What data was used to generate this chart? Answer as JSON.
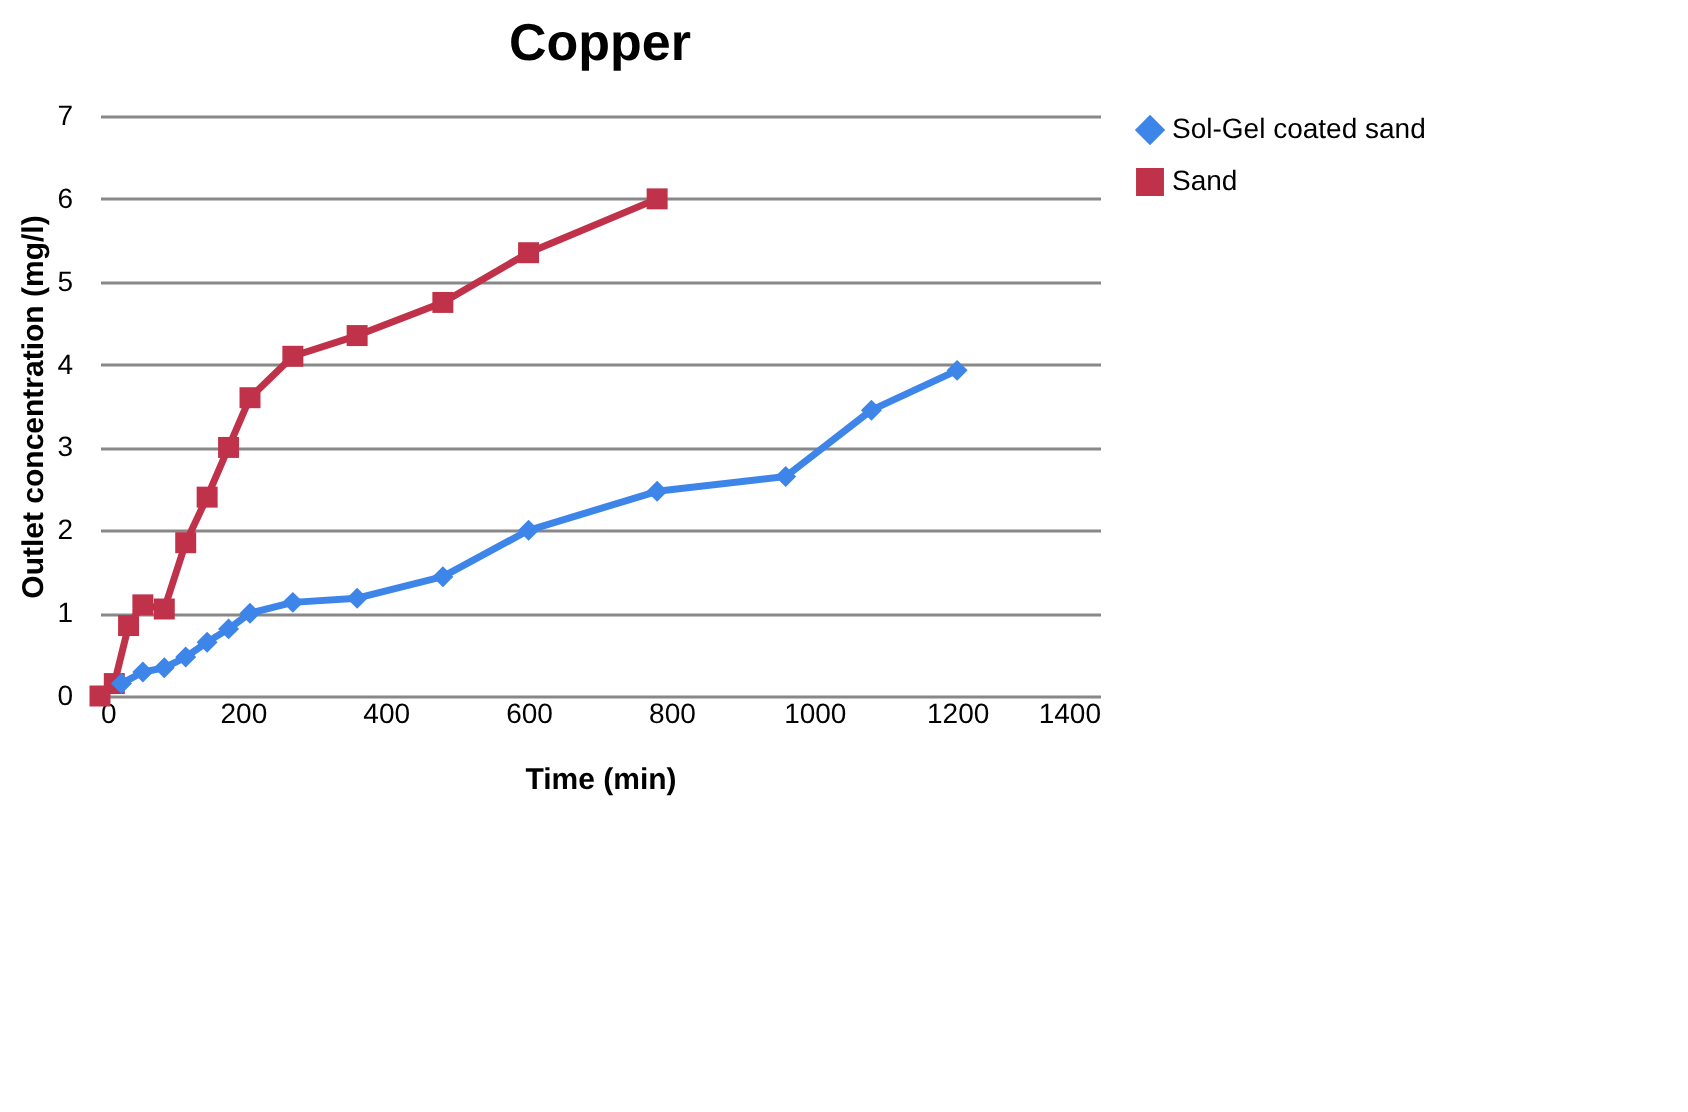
{
  "chart_data": {
    "type": "line",
    "title": "Copper",
    "xlabel": "Time (min)",
    "ylabel": "Outlet concentration (mg/l)",
    "xlim": [
      0,
      1400
    ],
    "xticks": [
      0,
      200,
      400,
      600,
      800,
      1000,
      1200,
      1400
    ],
    "ylim": [
      0,
      7
    ],
    "yticks": [
      0,
      1,
      2,
      3,
      4,
      5,
      6,
      7
    ],
    "grid": "y",
    "legend": "right",
    "series": [
      {
        "name": "Sol-Gel coated sand",
        "color": "#3d85e8",
        "marker": "diamond",
        "x": [
          0,
          30,
          60,
          90,
          120,
          150,
          180,
          210,
          270,
          360,
          480,
          600,
          780,
          960,
          1080,
          1200
        ],
        "values": [
          0,
          0.15,
          0.29,
          0.34,
          0.47,
          0.65,
          0.81,
          1.0,
          1.13,
          1.18,
          1.44,
          2.0,
          2.47,
          2.65,
          3.45,
          3.93
        ]
      },
      {
        "name": "Sand",
        "color": "#c0324a",
        "marker": "square",
        "x": [
          0,
          20,
          40,
          60,
          90,
          120,
          150,
          180,
          210,
          270,
          360,
          480,
          600,
          780
        ],
        "values": [
          0,
          0.15,
          0.85,
          1.1,
          1.05,
          1.85,
          2.4,
          3.0,
          3.6,
          4.1,
          4.35,
          4.75,
          5.35,
          6.0
        ]
      }
    ]
  }
}
